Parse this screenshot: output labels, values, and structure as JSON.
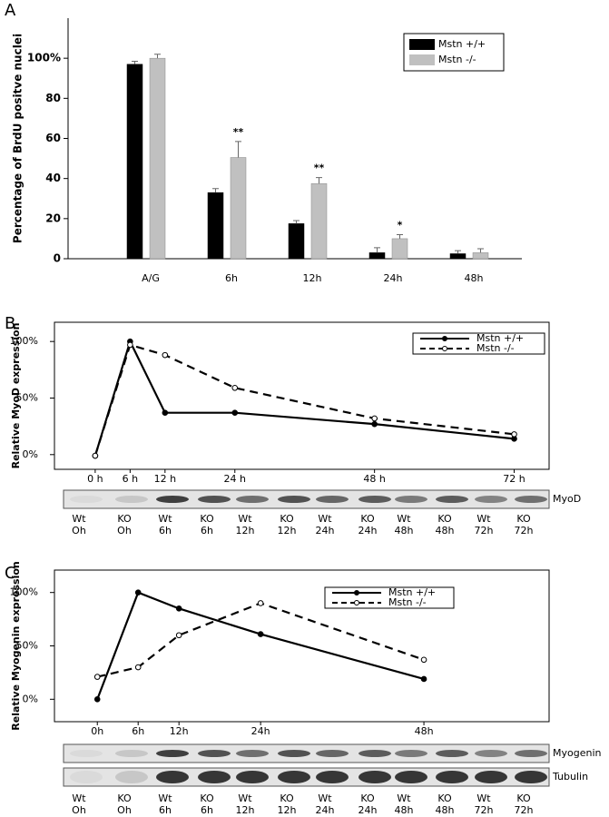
{
  "chart_data": [
    {
      "type": "bar",
      "panel": "A",
      "ylabel": "Percentage of BrdU positve nuclei",
      "categories": [
        "A/G",
        "6h",
        "12h",
        "24h",
        "48h"
      ],
      "series": [
        {
          "name": "Mstn +/+",
          "color": "#000000",
          "values": [
            97,
            33,
            17.5,
            3,
            2.5
          ],
          "errors": [
            1.5,
            2,
            1.5,
            2.5,
            1.5
          ]
        },
        {
          "name": "Mstn -/-",
          "color": "#c0c0c0",
          "values": [
            100,
            50.5,
            37.5,
            10,
            3
          ],
          "errors": [
            2,
            8,
            3,
            2,
            2
          ],
          "annotations": [
            null,
            "**",
            "**",
            "*",
            null
          ]
        }
      ],
      "ylim": [
        0,
        120
      ],
      "yticks": [
        0,
        20,
        40,
        60,
        80,
        {
          "value": 100,
          "label": "100%"
        }
      ],
      "legend": "top-right"
    },
    {
      "type": "line",
      "panel": "B",
      "ylabel": "Relative MyoD expression",
      "x": [
        0,
        6,
        12,
        24,
        48,
        72
      ],
      "series": [
        {
          "name": "Mstn +/+",
          "color": "#000000",
          "dashed": false,
          "marker": "filled",
          "values": [
            -1,
            100,
            37,
            37,
            27,
            14
          ]
        },
        {
          "name": "Mstn -/-",
          "color": "#000000",
          "dashed": true,
          "marker": "open",
          "values": [
            -1,
            97,
            88,
            59,
            32,
            18
          ]
        }
      ],
      "xlim": [
        -7,
        78
      ],
      "xticks": [
        {
          "value": 0,
          "label": "0 h"
        },
        {
          "value": 6,
          "label": "6 h"
        },
        {
          "value": 12,
          "label": "12 h"
        },
        {
          "value": 24,
          "label": "24 h"
        },
        {
          "value": 48,
          "label": "48 h"
        },
        {
          "value": 72,
          "label": "72 h"
        }
      ],
      "ylim": [
        -13,
        117
      ],
      "yticks": [
        {
          "value": 0,
          "label": "0%"
        },
        {
          "value": 50,
          "label": "50%"
        },
        {
          "value": 100,
          "label": "100%"
        }
      ],
      "legend": "top-right",
      "blots": [
        "MyoD"
      ],
      "lanes": [
        [
          "Wt",
          "Oh"
        ],
        [
          "KO",
          "Oh"
        ],
        [
          "Wt",
          "6h"
        ],
        [
          "KO",
          "6h"
        ],
        [
          "Wt",
          "12h"
        ],
        [
          "KO",
          "12h"
        ],
        [
          "Wt",
          "24h"
        ],
        [
          "KO",
          "24h"
        ],
        [
          "Wt",
          "48h"
        ],
        [
          "KO",
          "48h"
        ],
        [
          "Wt",
          "72h"
        ],
        [
          "KO",
          "72h"
        ]
      ]
    },
    {
      "type": "line",
      "panel": "C",
      "ylabel": "Relative Myogenin expression",
      "x": [
        0,
        6,
        12,
        24,
        48
      ],
      "series": [
        {
          "name": "Mstn +/+",
          "color": "#000000",
          "dashed": false,
          "marker": "filled",
          "values": [
            0,
            100,
            85,
            61,
            19
          ]
        },
        {
          "name": "Mstn -/-",
          "color": "#000000",
          "dashed": true,
          "marker": "open",
          "values": [
            21,
            30,
            60,
            90,
            37
          ]
        }
      ],
      "xlim": [
        -6.3,
        66.4
      ],
      "xticks": [
        {
          "value": 0,
          "label": "0h"
        },
        {
          "value": 6,
          "label": "6h"
        },
        {
          "value": 12,
          "label": "12h"
        },
        {
          "value": 24,
          "label": "24h"
        },
        {
          "value": 48,
          "label": "48h"
        }
      ],
      "ylim": [
        -21,
        121
      ],
      "yticks": [
        {
          "value": 0,
          "label": "0%"
        },
        {
          "value": 50,
          "label": "50%"
        },
        {
          "value": 100,
          "label": "100%"
        }
      ],
      "legend": "top-center",
      "blots": [
        "Myogenin",
        "Tubulin"
      ],
      "lanes": [
        [
          "Wt",
          "Oh"
        ],
        [
          "KO",
          "Oh"
        ],
        [
          "Wt",
          "6h"
        ],
        [
          "KO",
          "6h"
        ],
        [
          "Wt",
          "12h"
        ],
        [
          "KO",
          "12h"
        ],
        [
          "Wt",
          "24h"
        ],
        [
          "KO",
          "24h"
        ],
        [
          "Wt",
          "48h"
        ],
        [
          "KO",
          "48h"
        ],
        [
          "Wt",
          "72h"
        ],
        [
          "KO",
          "72h"
        ]
      ]
    }
  ]
}
